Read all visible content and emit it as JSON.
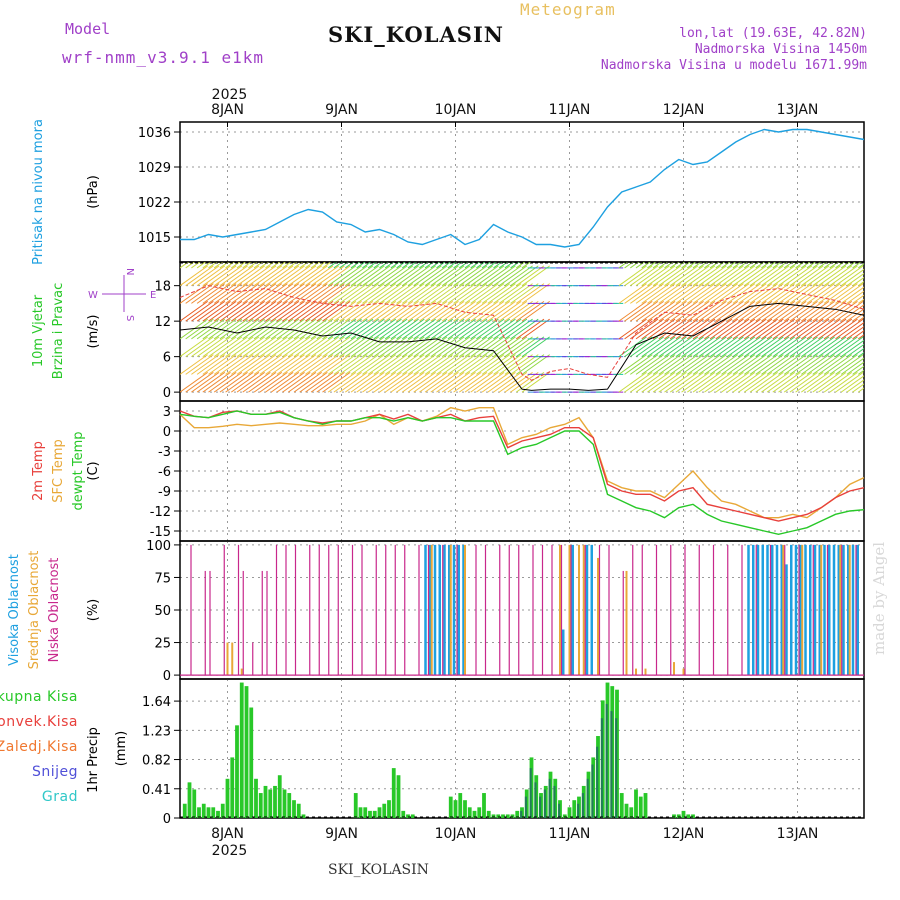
{
  "header": {
    "model_label": "Model",
    "model_name": "wrf-nmm_v3.9.1 e1km",
    "station": "SKI_KOLASIN",
    "title": "Meteogram",
    "lonlat": "lon,lat (19.63E, 42.82N)",
    "elevation": "Nadmorska Visina 1450m",
    "model_elevation": "Nadmorska Visina u modelu 1671.99m",
    "watermark": "made by Angel",
    "footer_station": "SKI_KOLASIN"
  },
  "time_axis": {
    "year": "2025",
    "days": [
      "8JAN",
      "9JAN",
      "10JAN",
      "11JAN",
      "12JAN",
      "13JAN"
    ]
  },
  "colors": {
    "pressure": "#1ea0e0",
    "temp2m": "#e8403c",
    "sfc_temp": "#e8a838",
    "dewpoint": "#28c828",
    "cloud_high": "#1ea0e0",
    "cloud_mid": "#e8a838",
    "cloud_low": "#c8288c",
    "precip_total": "#28c828",
    "precip_conv": "#e8403c",
    "precip_frz": "#f07830",
    "precip_snow": "#5050d8",
    "precip_grad": "#30c8c8"
  },
  "chart_data": [
    {
      "type": "line",
      "ylabel": "Pritisak na nivou mora",
      "unit": "(hPa)",
      "yticks": [
        1015,
        1022,
        1029,
        1036
      ],
      "ylim": [
        1010,
        1038
      ],
      "xlim": [
        0,
        144
      ],
      "series": [
        {
          "name": "",
          "x": [
            0,
            3,
            6,
            9,
            12,
            15,
            18,
            21,
            24,
            27,
            30,
            33,
            36,
            39,
            42,
            45,
            48,
            51,
            54,
            57,
            60,
            63,
            66,
            69,
            72,
            75,
            78,
            81,
            84,
            87,
            90,
            93,
            96,
            99,
            102,
            105,
            108,
            111,
            114,
            117,
            120,
            123,
            126,
            129,
            132,
            135,
            138,
            141,
            144
          ],
          "y": [
            1014.5,
            1014.5,
            1015.5,
            1015.0,
            1015.5,
            1016.0,
            1016.5,
            1018.0,
            1019.5,
            1020.5,
            1020.0,
            1018.0,
            1017.5,
            1016.0,
            1016.5,
            1015.5,
            1014.0,
            1013.5,
            1014.5,
            1015.5,
            1013.5,
            1014.5,
            1017.5,
            1016.0,
            1015.0,
            1013.5,
            1013.5,
            1013.0,
            1013.5,
            1017.0,
            1021.0,
            1024.0,
            1025.0,
            1026.0,
            1028.5,
            1030.5,
            1029.5,
            1030.0,
            1032.0,
            1034.0,
            1035.5,
            1036.5,
            1036.0,
            1036.5,
            1036.5,
            1036.0,
            1035.5,
            1035.0,
            1034.5
          ]
        }
      ]
    },
    {
      "type": "line",
      "ylabel": "10m Vjetar Brzina i Pravac",
      "unit": "(m/s)",
      "yticks": [
        0,
        6,
        12,
        18
      ],
      "ylim": [
        -1.5,
        22
      ],
      "xlim": [
        0,
        144
      ],
      "compass": {
        "n": "N",
        "e": "E",
        "s": "S",
        "w": "W"
      },
      "series": [
        {
          "name": "",
          "x": [
            0,
            6,
            12,
            18,
            24,
            30,
            36,
            42,
            48,
            54,
            60,
            66,
            72,
            74,
            78,
            82,
            86,
            90,
            96,
            102,
            108,
            114,
            120,
            126,
            132,
            138,
            144
          ],
          "y": [
            10.5,
            11.0,
            10.0,
            11.0,
            10.5,
            9.5,
            10.0,
            8.5,
            8.5,
            9.0,
            7.5,
            7.0,
            0.5,
            0.3,
            0.5,
            0.5,
            0.3,
            0.5,
            8.0,
            10.0,
            9.5,
            12.0,
            14.5,
            15.0,
            14.5,
            14.0,
            13.0
          ]
        },
        {
          "name": "",
          "x": [
            0,
            6,
            12,
            18,
            24,
            30,
            36,
            42,
            48,
            54,
            60,
            66,
            72,
            74,
            78,
            82,
            86,
            90,
            96,
            102,
            108,
            114,
            120,
            126,
            132,
            138,
            144
          ],
          "y": [
            16.0,
            18.0,
            17.0,
            17.5,
            16.0,
            15.0,
            14.5,
            15.0,
            14.5,
            15.0,
            13.5,
            13.0,
            3.0,
            2.0,
            3.5,
            4.0,
            3.0,
            2.5,
            10.0,
            13.5,
            13.0,
            15.5,
            17.0,
            17.5,
            16.5,
            15.5,
            14.0
          ]
        }
      ]
    },
    {
      "type": "line",
      "ylabel": "2m Temp / SFC Temp / dewpt Temp",
      "unit": "(C)",
      "yticks": [
        -15,
        -12,
        -9,
        -6,
        -3,
        0,
        3
      ],
      "ylim": [
        -16.5,
        4.5
      ],
      "xlim": [
        0,
        144
      ],
      "series": [
        {
          "name": "2m Temp",
          "x": [
            0,
            3,
            6,
            9,
            12,
            15,
            18,
            21,
            24,
            27,
            30,
            33,
            36,
            39,
            42,
            45,
            48,
            51,
            54,
            57,
            60,
            63,
            66,
            69,
            72,
            75,
            78,
            81,
            84,
            87,
            90,
            93,
            96,
            99,
            102,
            105,
            108,
            111,
            114,
            117,
            120,
            123,
            126,
            129,
            132,
            135,
            138,
            141,
            144
          ],
          "y": [
            3.0,
            2.2,
            2.0,
            2.8,
            3.0,
            2.5,
            2.5,
            3.0,
            2.0,
            1.5,
            1.2,
            1.5,
            1.5,
            2.0,
            2.5,
            1.8,
            2.5,
            1.5,
            2.0,
            2.5,
            1.5,
            2.0,
            2.2,
            -2.5,
            -1.5,
            -1.0,
            -0.5,
            0.5,
            0.5,
            -1.0,
            -8.0,
            -9.0,
            -9.5,
            -9.5,
            -10.5,
            -9.0,
            -8.5,
            -11.0,
            -11.5,
            -12.0,
            -12.5,
            -13.0,
            -13.5,
            -13.0,
            -12.5,
            -11.5,
            -10.0,
            -9.0,
            -8.5
          ]
        },
        {
          "name": "SFC Temp",
          "x": [
            0,
            3,
            6,
            9,
            12,
            15,
            18,
            21,
            24,
            27,
            30,
            33,
            36,
            39,
            42,
            45,
            48,
            51,
            54,
            57,
            60,
            63,
            66,
            69,
            72,
            75,
            78,
            81,
            84,
            87,
            90,
            93,
            96,
            99,
            102,
            105,
            108,
            111,
            114,
            117,
            120,
            123,
            126,
            129,
            132,
            135,
            138,
            141,
            144
          ],
          "y": [
            2.5,
            0.5,
            0.5,
            0.7,
            1.0,
            0.8,
            1.0,
            1.2,
            1.0,
            0.8,
            0.8,
            1.0,
            1.0,
            1.5,
            2.5,
            1.0,
            2.0,
            1.5,
            2.2,
            3.5,
            3.0,
            3.5,
            3.5,
            -2.0,
            -1.0,
            -0.5,
            0.5,
            1.0,
            2.0,
            -1.0,
            -7.5,
            -8.5,
            -9.0,
            -9.0,
            -10.0,
            -8.0,
            -6.0,
            -8.5,
            -10.5,
            -11.0,
            -12.0,
            -13.0,
            -13.0,
            -12.5,
            -13.0,
            -11.5,
            -10.0,
            -8.0,
            -7.0
          ]
        },
        {
          "name": "dewpt Temp",
          "x": [
            0,
            3,
            6,
            9,
            12,
            15,
            18,
            21,
            24,
            27,
            30,
            33,
            36,
            39,
            42,
            45,
            48,
            51,
            54,
            57,
            60,
            63,
            66,
            69,
            72,
            75,
            78,
            81,
            84,
            87,
            90,
            93,
            96,
            99,
            102,
            105,
            108,
            111,
            114,
            117,
            120,
            123,
            126,
            129,
            132,
            135,
            138,
            141,
            144
          ],
          "y": [
            2.5,
            2.2,
            2.0,
            2.5,
            3.0,
            2.5,
            2.5,
            2.8,
            2.0,
            1.5,
            1.0,
            1.5,
            1.5,
            2.0,
            2.0,
            1.5,
            2.0,
            1.5,
            2.0,
            2.0,
            1.5,
            1.5,
            1.5,
            -3.5,
            -2.5,
            -2.0,
            -1.0,
            0.0,
            0.0,
            -2.0,
            -9.5,
            -10.5,
            -11.5,
            -12.0,
            -13.0,
            -11.5,
            -11.0,
            -12.5,
            -13.5,
            -14.0,
            -14.5,
            -15.0,
            -15.5,
            -15.0,
            -14.5,
            -13.5,
            -12.5,
            -12.0,
            -11.8
          ]
        }
      ]
    },
    {
      "type": "bar",
      "ylabel": "Visoka Oblacnost / Srednja Oblacnost / Niska Oblacnost",
      "unit": "(%)",
      "yticks": [
        0,
        25,
        50,
        75,
        100
      ],
      "ylim": [
        -3,
        103
      ],
      "xlim": [
        0,
        144
      ],
      "series": [
        {
          "name": "Visoka Oblacnost",
          "x": [
            52,
            53,
            54,
            55,
            56,
            57,
            58,
            59,
            60,
            81,
            83,
            86,
            87,
            120,
            121,
            122,
            123,
            124,
            125,
            126,
            127,
            128,
            129,
            130,
            131,
            132,
            133,
            134,
            135,
            136,
            137,
            138,
            139,
            140,
            141,
            142,
            143
          ],
          "y": [
            100,
            100,
            100,
            100,
            100,
            100,
            100,
            100,
            100,
            35,
            100,
            100,
            100,
            100,
            100,
            100,
            100,
            100,
            100,
            100,
            100,
            85,
            100,
            100,
            100,
            100,
            100,
            100,
            100,
            100,
            100,
            100,
            100,
            100,
            100,
            100,
            100
          ]
        },
        {
          "name": "Srednja Oblacnost",
          "x": [
            10,
            11,
            13,
            53,
            57,
            60,
            80,
            82,
            84,
            85,
            88,
            94,
            96,
            98,
            104,
            106,
            127,
            131,
            135,
            139,
            141
          ],
          "y": [
            25,
            25,
            5,
            100,
            100,
            100,
            100,
            100,
            100,
            100,
            90,
            80,
            5,
            5,
            10,
            5,
            100,
            100,
            100,
            100,
            100
          ]
        },
        {
          "name": "Niska Oblacnost",
          "x": [
            2,
            5,
            6,
            9,
            12,
            13,
            15,
            17,
            18,
            20,
            22,
            24,
            27,
            29,
            31,
            33,
            36,
            38,
            41,
            43,
            45,
            47,
            50,
            52,
            55,
            58,
            62,
            64,
            67,
            69,
            71,
            74,
            76,
            78,
            80,
            82,
            85,
            88,
            90,
            93,
            95,
            97,
            100,
            103,
            106,
            109,
            112,
            115,
            118,
            121,
            124,
            127,
            130,
            133,
            136,
            139,
            142
          ],
          "y": [
            100,
            80,
            80,
            100,
            100,
            80,
            25,
            80,
            80,
            100,
            100,
            100,
            100,
            100,
            100,
            100,
            100,
            100,
            100,
            100,
            100,
            100,
            100,
            100,
            100,
            100,
            100,
            100,
            100,
            100,
            100,
            100,
            100,
            100,
            100,
            100,
            100,
            100,
            100,
            80,
            100,
            100,
            100,
            100,
            100,
            100,
            100,
            100,
            100,
            100,
            100,
            100,
            100,
            100,
            100,
            100,
            100
          ]
        }
      ]
    },
    {
      "type": "bar",
      "ylabel": "1hr Precip",
      "unit": "(mm)",
      "yticks": [
        0,
        0.41,
        0.82,
        1.23,
        1.64
      ],
      "ylim": [
        0,
        1.95
      ],
      "xlim": [
        0,
        144
      ],
      "legend": [
        "Ukupna Kisa",
        "Konvek.Kisa",
        "Zaledj.Kisa",
        "Snijeg",
        "Grad"
      ],
      "series": [
        {
          "name": "Ukupna Kisa",
          "x": [
            1,
            2,
            3,
            4,
            5,
            6,
            7,
            8,
            9,
            10,
            11,
            12,
            13,
            14,
            15,
            16,
            17,
            18,
            19,
            20,
            21,
            22,
            23,
            24,
            25,
            26,
            37,
            38,
            39,
            40,
            41,
            42,
            43,
            44,
            45,
            46,
            47,
            48,
            49,
            57,
            58,
            59,
            60,
            61,
            62,
            63,
            64,
            65,
            66,
            67,
            68,
            69,
            70,
            71,
            72,
            73,
            74,
            75,
            76,
            77,
            78,
            79,
            80,
            81,
            82,
            83,
            84,
            85,
            86,
            87,
            88,
            89,
            90,
            91,
            92,
            93,
            94,
            95,
            96,
            97,
            98,
            104,
            105,
            106,
            107,
            108
          ],
          "y": [
            0.2,
            0.5,
            0.4,
            0.15,
            0.2,
            0.15,
            0.15,
            0.1,
            0.2,
            0.55,
            0.85,
            1.3,
            1.9,
            1.85,
            1.55,
            0.55,
            0.35,
            0.45,
            0.4,
            0.45,
            0.6,
            0.4,
            0.35,
            0.25,
            0.2,
            0.05,
            0.35,
            0.15,
            0.15,
            0.1,
            0.1,
            0.15,
            0.2,
            0.25,
            0.7,
            0.6,
            0.1,
            0.05,
            0.05,
            0.3,
            0.25,
            0.35,
            0.25,
            0.15,
            0.1,
            0.15,
            0.35,
            0.1,
            0.05,
            0.05,
            0.05,
            0.05,
            0.05,
            0.1,
            0.15,
            0.4,
            0.85,
            0.6,
            0.35,
            0.45,
            0.65,
            0.55,
            0.25,
            0.05,
            0.15,
            0.25,
            0.3,
            0.45,
            0.65,
            0.85,
            1.15,
            1.65,
            1.9,
            1.85,
            1.8,
            0.35,
            0.2,
            0.15,
            0.4,
            0.3,
            0.35,
            0.05,
            0.05,
            0.1,
            0.05,
            0.05
          ]
        },
        {
          "name": "Snijeg",
          "x": [
            72,
            73,
            74,
            75,
            76,
            77,
            78,
            79,
            80,
            84,
            85,
            86,
            87,
            88,
            89,
            90,
            91,
            92
          ],
          "y": [
            0.1,
            0.3,
            0.7,
            0.5,
            0.3,
            0.4,
            0.55,
            0.45,
            0.2,
            0.2,
            0.35,
            0.55,
            0.75,
            1.0,
            1.4,
            1.6,
            1.5,
            1.4
          ]
        }
      ]
    }
  ]
}
